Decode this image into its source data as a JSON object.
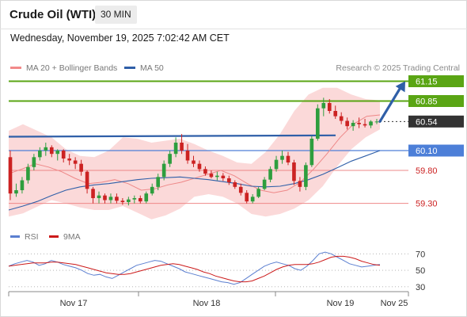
{
  "header": {
    "title": "Crude Oil (WTI)",
    "timeframe": "30 MIN",
    "datetime": "Wednesday, November 19, 2025 7:02:42 AM CET"
  },
  "legend": {
    "ma20_label": "MA 20 + Bollinger Bands",
    "ma50_label": "MA 50",
    "credit": "Research © 2025 Trading Central",
    "rsi_label": "RSI",
    "rsi_ma_label": "9MA"
  },
  "colors": {
    "up_candle": "#2e9e3e",
    "down_candle": "#cc2222",
    "bollinger": "#f9cccc",
    "ma20": "#ee8888",
    "ma50": "#2f5fa8",
    "resistance": "#5aa514",
    "pivot": "#4d7fd8",
    "support": "#ee8888",
    "last_price": "#333333",
    "rsi": "#5b7fd0",
    "rsi_ma": "#cc1a1a"
  },
  "chart_data": [
    {
      "type": "candlestick",
      "title": "Crude Oil (WTI)",
      "timeframe": "30 MIN",
      "x_ticks": [
        "Nov 17",
        "Nov 18",
        "Nov 19",
        "Nov 25"
      ],
      "ylim": [
        59.08,
        61.3
      ],
      "levels": [
        {
          "label": "61.15",
          "value": 61.15,
          "kind": "resistance"
        },
        {
          "label": "60.85",
          "value": 60.85,
          "kind": "resistance"
        },
        {
          "label": "60.54",
          "value": 60.54,
          "kind": "last"
        },
        {
          "label": "60.10",
          "value": 60.1,
          "kind": "pivot"
        },
        {
          "label": "59.80",
          "value": 59.8,
          "kind": "support"
        },
        {
          "label": "59.30",
          "value": 59.3,
          "kind": "support"
        }
      ],
      "trend_line": [
        60.31,
        60.33
      ],
      "candles": [
        [
          60.0,
          60.1,
          59.35,
          59.45
        ],
        [
          59.45,
          59.6,
          59.4,
          59.5
        ],
        [
          59.5,
          59.7,
          59.45,
          59.65
        ],
        [
          59.65,
          59.9,
          59.6,
          59.85
        ],
        [
          59.85,
          60.05,
          59.8,
          60.0
        ],
        [
          60.0,
          60.15,
          59.95,
          60.1
        ],
        [
          60.1,
          60.22,
          60.02,
          60.15
        ],
        [
          60.15,
          60.18,
          60.0,
          60.05
        ],
        [
          60.05,
          60.12,
          59.95,
          60.1
        ],
        [
          60.1,
          60.12,
          59.92,
          59.98
        ],
        [
          59.98,
          60.05,
          59.88,
          59.95
        ],
        [
          59.95,
          60.0,
          59.82,
          59.9
        ],
        [
          59.9,
          59.96,
          59.72,
          59.78
        ],
        [
          59.78,
          59.8,
          59.45,
          59.52
        ],
        [
          59.52,
          59.55,
          59.3,
          59.38
        ],
        [
          59.38,
          59.48,
          59.3,
          59.42
        ],
        [
          59.42,
          59.45,
          59.3,
          59.35
        ],
        [
          59.35,
          59.45,
          59.3,
          59.4
        ],
        [
          59.4,
          59.45,
          59.3,
          59.34
        ],
        [
          59.34,
          59.38,
          59.28,
          59.32
        ],
        [
          59.32,
          59.4,
          59.27,
          59.36
        ],
        [
          59.36,
          59.42,
          59.3,
          59.38
        ],
        [
          59.38,
          59.42,
          59.3,
          59.33
        ],
        [
          59.33,
          59.48,
          59.3,
          59.45
        ],
        [
          59.45,
          59.6,
          59.42,
          59.55
        ],
        [
          59.55,
          59.75,
          59.5,
          59.7
        ],
        [
          59.7,
          59.95,
          59.65,
          59.9
        ],
        [
          59.9,
          60.1,
          59.85,
          60.05
        ],
        [
          60.05,
          60.3,
          60.0,
          60.22
        ],
        [
          60.22,
          60.35,
          60.05,
          60.1
        ],
        [
          60.1,
          60.2,
          59.9,
          59.95
        ],
        [
          59.95,
          60.02,
          59.85,
          59.9
        ],
        [
          59.9,
          59.95,
          59.78,
          59.82
        ],
        [
          59.82,
          59.86,
          59.72,
          59.75
        ],
        [
          59.75,
          59.8,
          59.68,
          59.7
        ],
        [
          59.7,
          59.78,
          59.65,
          59.72
        ],
        [
          59.72,
          59.76,
          59.64,
          59.68
        ],
        [
          59.68,
          59.72,
          59.58,
          59.62
        ],
        [
          59.62,
          59.65,
          59.52,
          59.55
        ],
        [
          59.55,
          59.6,
          59.42,
          59.46
        ],
        [
          59.46,
          59.5,
          59.3,
          59.33
        ],
        [
          59.33,
          59.44,
          59.3,
          59.4
        ],
        [
          59.4,
          59.55,
          59.38,
          59.52
        ],
        [
          59.52,
          59.7,
          59.5,
          59.66
        ],
        [
          59.66,
          59.86,
          59.62,
          59.82
        ],
        [
          59.82,
          60.02,
          59.78,
          59.96
        ],
        [
          59.96,
          60.1,
          59.9,
          60.02
        ],
        [
          60.02,
          60.08,
          59.88,
          59.92
        ],
        [
          59.92,
          59.96,
          59.58,
          59.64
        ],
        [
          59.64,
          59.7,
          59.48,
          59.55
        ],
        [
          59.55,
          59.92,
          59.5,
          59.88
        ],
        [
          59.88,
          60.32,
          59.85,
          60.28
        ],
        [
          60.28,
          60.8,
          60.25,
          60.74
        ],
        [
          60.74,
          60.9,
          60.62,
          60.82
        ],
        [
          60.82,
          60.88,
          60.66,
          60.7
        ],
        [
          60.7,
          60.78,
          60.58,
          60.62
        ],
        [
          60.62,
          60.68,
          60.5,
          60.55
        ],
        [
          60.55,
          60.6,
          60.42,
          60.47
        ],
        [
          60.47,
          60.56,
          60.4,
          60.52
        ],
        [
          60.52,
          60.6,
          60.44,
          60.5
        ],
        [
          60.5,
          60.58,
          60.45,
          60.48
        ],
        [
          60.48,
          60.56,
          60.44,
          60.54
        ],
        [
          60.54,
          60.58,
          60.5,
          60.54
        ]
      ],
      "ma20": [
        59.75,
        59.82,
        59.9,
        59.85,
        59.78,
        59.68,
        59.6,
        59.62,
        59.66,
        59.6,
        59.5,
        59.52,
        59.58,
        59.62,
        59.68,
        59.74,
        59.8,
        59.72,
        59.6,
        59.5,
        59.46,
        59.5,
        59.62,
        59.82,
        60.05,
        60.3,
        60.5,
        60.62,
        60.64
      ],
      "ma50": [
        59.2,
        59.26,
        59.33,
        59.42,
        59.5,
        59.55,
        59.58,
        59.6,
        59.63,
        59.66,
        59.68,
        59.69,
        59.7,
        59.68,
        59.66,
        59.63,
        59.6,
        59.56,
        59.55,
        59.56,
        59.6,
        59.66,
        59.74,
        59.84,
        59.94,
        60.02,
        60.1
      ],
      "bb_upper": [
        60.4,
        60.5,
        60.4,
        60.3,
        60.12,
        60.02,
        60.0,
        60.1,
        60.3,
        60.28,
        60.22,
        60.25,
        60.28,
        60.2,
        60.1,
        60.02,
        59.92,
        59.9,
        60.08,
        60.35,
        60.7,
        60.95,
        61.05,
        61.05,
        60.95,
        60.88,
        60.86
      ],
      "bb_lower": [
        59.1,
        59.15,
        59.25,
        59.35,
        59.3,
        59.24,
        59.2,
        59.2,
        59.26,
        59.16,
        59.06,
        59.12,
        59.22,
        59.4,
        59.44,
        59.4,
        59.3,
        59.14,
        59.1,
        59.14,
        59.22,
        59.35,
        59.56,
        59.86,
        60.12,
        60.3,
        60.42
      ],
      "projection": {
        "from": 60.54,
        "to": 61.15
      }
    },
    {
      "type": "line",
      "title": "RSI",
      "y_ticks": [
        70,
        50,
        30
      ],
      "ylim": [
        25,
        78
      ],
      "series": [
        {
          "name": "RSI",
          "values": [
            55,
            58,
            60,
            62,
            60,
            56,
            58,
            62,
            60,
            57,
            55,
            53,
            50,
            46,
            44,
            45,
            42,
            40,
            44,
            48,
            52,
            56,
            58,
            60,
            62,
            61,
            58,
            55,
            52,
            48,
            46,
            44,
            42,
            40,
            38,
            36,
            35,
            33,
            35,
            40,
            45,
            50,
            55,
            58,
            60,
            58,
            56,
            52,
            50,
            55,
            62,
            70,
            72,
            70,
            66,
            62,
            58,
            56,
            54,
            55,
            56,
            57
          ]
        },
        {
          "name": "9MA",
          "values": [
            55,
            56,
            57,
            58,
            59,
            59,
            59,
            60,
            60,
            59,
            58,
            57,
            55,
            53,
            51,
            49,
            47,
            46,
            45,
            45,
            46,
            48,
            50,
            52,
            54,
            56,
            57,
            58,
            57,
            55,
            53,
            51,
            48,
            46,
            43,
            41,
            39,
            37,
            36,
            36,
            37,
            40,
            43,
            47,
            51,
            54,
            56,
            57,
            57,
            57,
            58,
            60,
            63,
            66,
            67,
            67,
            66,
            64,
            61,
            59,
            57,
            56
          ]
        }
      ]
    }
  ]
}
